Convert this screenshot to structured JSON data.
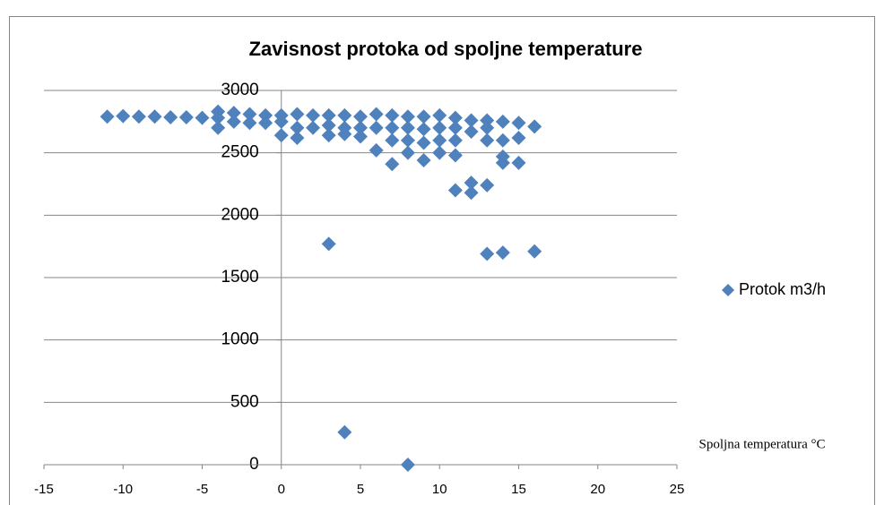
{
  "chart_data": {
    "type": "scatter",
    "title": "Zavisnost protoka od spoljne temperature",
    "x_label": "Spoljna temperatura °C",
    "x": [
      -11,
      -10,
      -9,
      -8,
      -7,
      -6,
      -5,
      -4,
      -4,
      -4,
      -3,
      -3,
      -2,
      -2,
      -1,
      -1,
      0,
      0,
      0,
      1,
      1,
      1,
      2,
      2,
      3,
      3,
      3,
      3,
      4,
      4,
      4,
      4,
      5,
      5,
      5,
      6,
      6,
      6,
      7,
      7,
      7,
      7,
      8,
      8,
      8,
      8,
      8,
      9,
      9,
      9,
      9,
      10,
      10,
      10,
      10,
      11,
      11,
      11,
      11,
      11,
      12,
      12,
      12,
      12,
      13,
      13,
      13,
      13,
      13,
      14,
      14,
      14,
      14,
      14,
      15,
      15,
      15,
      16,
      16
    ],
    "series": [
      {
        "name": "Protok m3/h",
        "color": "#4f81bd",
        "values": [
          2790,
          2795,
          2790,
          2790,
          2785,
          2785,
          2780,
          2830,
          2780,
          2700,
          2820,
          2750,
          2810,
          2740,
          2800,
          2740,
          2800,
          2750,
          2640,
          2810,
          2700,
          2620,
          2800,
          2700,
          2800,
          2720,
          2640,
          1770,
          2800,
          2700,
          2650,
          260,
          2790,
          2700,
          2630,
          2810,
          2700,
          2520,
          2800,
          2700,
          2600,
          2410,
          2790,
          2700,
          2600,
          2500,
          0,
          2790,
          2690,
          2580,
          2440,
          2800,
          2700,
          2600,
          2500,
          2780,
          2700,
          2600,
          2480,
          2200,
          2760,
          2670,
          2260,
          2180,
          2760,
          2700,
          2600,
          2240,
          1690,
          2750,
          2600,
          2470,
          2420,
          1700,
          2740,
          2620,
          2420,
          2710,
          1710
        ]
      }
    ],
    "xlim": [
      -15,
      25
    ],
    "xticks": [
      -15,
      -10,
      -5,
      0,
      5,
      10,
      15,
      20,
      25
    ],
    "ylim": [
      0,
      3000
    ],
    "yticks": [
      0,
      500,
      1000,
      1500,
      2000,
      2500,
      3000
    ],
    "grid": true,
    "legend": "right"
  }
}
